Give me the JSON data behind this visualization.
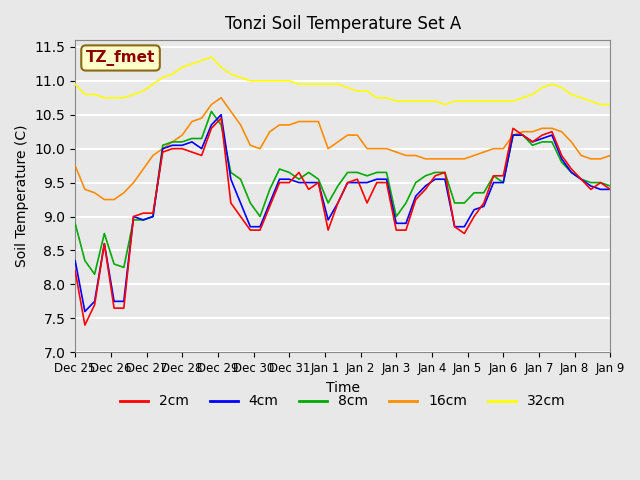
{
  "title": "Tonzi Soil Temperature Set A",
  "xlabel": "Time",
  "ylabel": "Soil Temperature (C)",
  "ylim": [
    7.0,
    11.6
  ],
  "yticks": [
    7.0,
    7.5,
    8.0,
    8.5,
    9.0,
    9.5,
    10.0,
    10.5,
    11.0,
    11.5
  ],
  "annotation_text": "TZ_fmet",
  "annotation_color": "#8B0000",
  "annotation_bg": "#FFFFCC",
  "annotation_border": "#8B6914",
  "bg_color": "#E8E8E8",
  "plot_bg": "#E8E8E8",
  "grid_color": "#FFFFFF",
  "colors": {
    "2cm": "#FF0000",
    "4cm": "#0000FF",
    "8cm": "#00AA00",
    "16cm": "#FF8C00",
    "32cm": "#FFFF00"
  },
  "x_labels": [
    "Dec 25",
    "Dec 26",
    "Dec 27",
    "Dec 28",
    "Dec 29",
    "Dec 30",
    "Dec 31",
    "Jan 1",
    "Jan 2",
    "Jan 3",
    "Jan 4",
    "Jan 5",
    "Jan 6",
    "Jan 7",
    "Jan 8",
    "Jan 9"
  ],
  "data_2cm": [
    8.2,
    7.4,
    7.7,
    8.6,
    7.65,
    7.65,
    9.0,
    9.05,
    9.05,
    9.95,
    10.0,
    10.0,
    9.95,
    9.9,
    10.3,
    10.45,
    9.2,
    9.0,
    8.8,
    8.8,
    9.15,
    9.5,
    9.5,
    9.65,
    9.4,
    9.5,
    8.8,
    9.2,
    9.5,
    9.55,
    9.2,
    9.5,
    9.5,
    8.8,
    8.8,
    9.25,
    9.4,
    9.6,
    9.65,
    8.85,
    8.75,
    9.0,
    9.2,
    9.6,
    9.6,
    10.3,
    10.2,
    10.1,
    10.2,
    10.25,
    9.9,
    9.7,
    9.55,
    9.4,
    9.5,
    9.4
  ],
  "data_4cm": [
    8.35,
    7.6,
    7.75,
    8.6,
    7.75,
    7.75,
    9.0,
    8.95,
    9.0,
    10.0,
    10.05,
    10.05,
    10.1,
    10.0,
    10.35,
    10.5,
    9.55,
    9.2,
    8.85,
    8.85,
    9.2,
    9.55,
    9.55,
    9.5,
    9.5,
    9.5,
    8.95,
    9.2,
    9.5,
    9.5,
    9.5,
    9.55,
    9.55,
    8.9,
    8.9,
    9.3,
    9.45,
    9.55,
    9.55,
    8.85,
    8.85,
    9.1,
    9.15,
    9.5,
    9.5,
    10.2,
    10.2,
    10.1,
    10.15,
    10.2,
    9.85,
    9.65,
    9.55,
    9.45,
    9.4,
    9.4
  ],
  "data_8cm": [
    8.9,
    8.35,
    8.15,
    8.75,
    8.3,
    8.25,
    8.95,
    8.95,
    9.0,
    10.05,
    10.1,
    10.1,
    10.15,
    10.15,
    10.55,
    10.35,
    9.65,
    9.55,
    9.2,
    9.0,
    9.4,
    9.7,
    9.65,
    9.55,
    9.65,
    9.55,
    9.2,
    9.45,
    9.65,
    9.65,
    9.6,
    9.65,
    9.65,
    9.0,
    9.2,
    9.5,
    9.6,
    9.65,
    9.65,
    9.2,
    9.2,
    9.35,
    9.35,
    9.6,
    9.5,
    10.2,
    10.2,
    10.05,
    10.1,
    10.1,
    9.8,
    9.65,
    9.55,
    9.5,
    9.5,
    9.45
  ],
  "data_16cm": [
    9.75,
    9.4,
    9.35,
    9.25,
    9.25,
    9.35,
    9.5,
    9.7,
    9.9,
    10.0,
    10.1,
    10.2,
    10.4,
    10.45,
    10.65,
    10.75,
    10.55,
    10.35,
    10.05,
    10.0,
    10.25,
    10.35,
    10.35,
    10.4,
    10.4,
    10.4,
    10.0,
    10.1,
    10.2,
    10.2,
    10.0,
    10.0,
    10.0,
    9.95,
    9.9,
    9.9,
    9.85,
    9.85,
    9.85,
    9.85,
    9.85,
    9.9,
    9.95,
    10.0,
    10.0,
    10.2,
    10.25,
    10.25,
    10.3,
    10.3,
    10.25,
    10.1,
    9.9,
    9.85,
    9.85,
    9.9
  ],
  "data_32cm": [
    10.95,
    10.8,
    10.8,
    10.75,
    10.75,
    10.75,
    10.8,
    10.85,
    10.95,
    11.05,
    11.1,
    11.2,
    11.25,
    11.3,
    11.35,
    11.2,
    11.1,
    11.05,
    11.0,
    11.0,
    11.0,
    11.0,
    11.0,
    10.95,
    10.95,
    10.95,
    10.95,
    10.95,
    10.9,
    10.85,
    10.85,
    10.75,
    10.75,
    10.7,
    10.7,
    10.7,
    10.7,
    10.7,
    10.65,
    10.7,
    10.7,
    10.7,
    10.7,
    10.7,
    10.7,
    10.7,
    10.75,
    10.8,
    10.9,
    10.95,
    10.9,
    10.8,
    10.75,
    10.7,
    10.65,
    10.65
  ]
}
